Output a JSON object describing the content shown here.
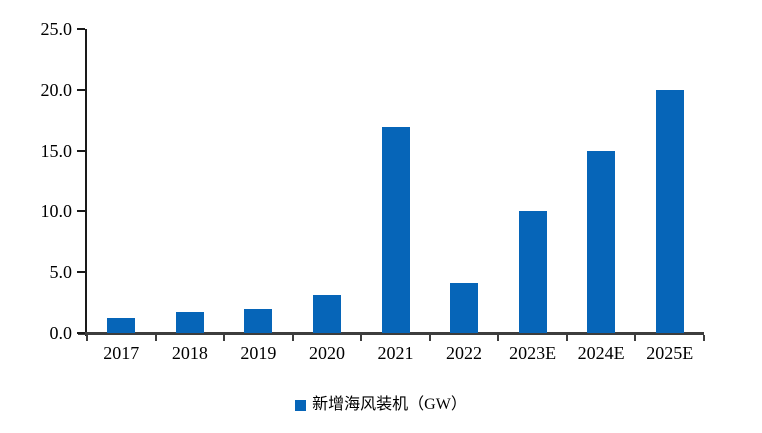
{
  "chart_data": {
    "type": "bar",
    "title": "",
    "categories": [
      "2017",
      "2018",
      "2019",
      "2020",
      "2021",
      "2022",
      "2023E",
      "2024E",
      "2025E"
    ],
    "values": [
      1.2,
      1.7,
      2.0,
      3.1,
      16.9,
      4.1,
      10.0,
      15.0,
      20.0
    ],
    "series_name": "新增海风装机（GW）",
    "xlabel": "",
    "ylabel": "",
    "ylim": [
      0,
      25
    ],
    "yticks": [
      0,
      5,
      10,
      15,
      20,
      25
    ],
    "ytick_labels": [
      "0.0",
      "5.0",
      "10.0",
      "15.0",
      "20.0",
      "25.0"
    ],
    "grid": false,
    "legend_position": "bottom",
    "bar_color": "#0665B8",
    "x_axis_color": "#3d3d3d",
    "y_axis_color": "#1a1a1a",
    "text_color": "#000000"
  },
  "legend": {
    "label": "新增海风装机（GW）",
    "marker_color": "#0665B8"
  }
}
